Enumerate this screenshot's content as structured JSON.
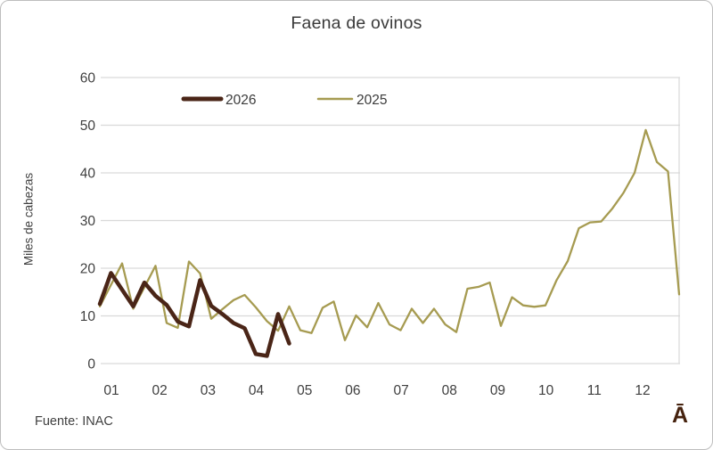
{
  "frame": {
    "source_note": "Fuente: INAC",
    "corner_glyph": "Ā"
  },
  "colors": {
    "series_2026": "#4A2517",
    "series_2025": "#A69B51",
    "gridline": "#D9D9D9",
    "text": "#404040",
    "border": "#BDBDBD"
  },
  "chart_data": {
    "type": "line",
    "title": "Faena de ovinos",
    "xlabel": "",
    "ylabel": "Miles de cabezas",
    "ylim": [
      0,
      60
    ],
    "yticks": [
      0,
      10,
      20,
      30,
      40,
      50,
      60
    ],
    "grid": "horizontal",
    "x_unit": "week-of-year",
    "month_labels": [
      "01",
      "02",
      "03",
      "04",
      "05",
      "06",
      "07",
      "08",
      "09",
      "10",
      "11",
      "12"
    ],
    "legend": {
      "position": "top-inside",
      "entries": [
        "2026",
        "2025"
      ]
    },
    "series": [
      {
        "name": "2026",
        "color": "#4A2517",
        "line_width": 4.5,
        "start_week": 1,
        "values": [
          12.5,
          19,
          15.5,
          12,
          17,
          14.2,
          12.3,
          8.8,
          7.8,
          17.5,
          12.1,
          10.4,
          8.5,
          7.4,
          2.0,
          1.6,
          10.4,
          4.2
        ]
      },
      {
        "name": "2025",
        "color": "#A69B51",
        "line_width": 2.3,
        "start_week": 1,
        "values": [
          12,
          16.5,
          21,
          11.5,
          16,
          20.5,
          8.5,
          7.5,
          21.4,
          18.9,
          9.4,
          11.4,
          13.3,
          14.4,
          11.8,
          8.9,
          6.9,
          12,
          7,
          6.4,
          11.7,
          13,
          4.9,
          10.1,
          7.6,
          12.7,
          8.2,
          7,
          11.5,
          8.5,
          11.5,
          8.2,
          6.6,
          15.7,
          16.1,
          17,
          7.9,
          13.9,
          12.2,
          11.9,
          12.2,
          17.5,
          21.5,
          28.4,
          29.6,
          29.8,
          32.5,
          35.8,
          40,
          49,
          42.3,
          40.3,
          14.5
        ]
      }
    ]
  }
}
